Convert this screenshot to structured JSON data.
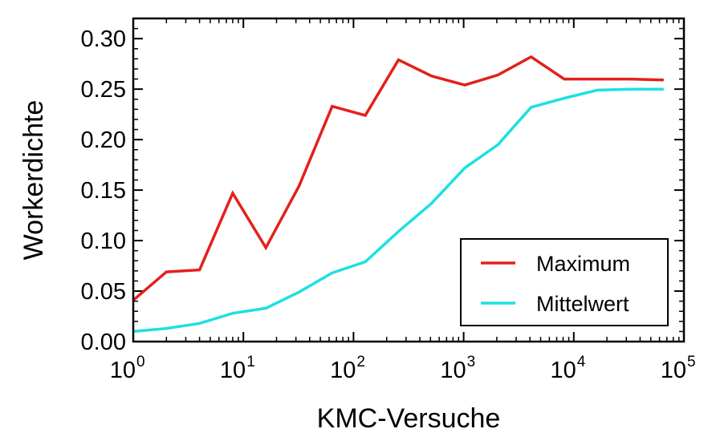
{
  "chart_data": {
    "type": "line",
    "title": "",
    "xlabel": "KMC-Versuche",
    "ylabel": "Workerdichte",
    "x_scale": "log",
    "xlim": [
      1,
      100000
    ],
    "ylim": [
      0,
      0.32
    ],
    "x_ticks": [
      {
        "value": 1,
        "base": "10",
        "exp": "0"
      },
      {
        "value": 10,
        "base": "10",
        "exp": "1"
      },
      {
        "value": 100,
        "base": "10",
        "exp": "2"
      },
      {
        "value": 1000,
        "base": "10",
        "exp": "3"
      },
      {
        "value": 10000,
        "base": "10",
        "exp": "4"
      },
      {
        "value": 100000,
        "base": "10",
        "exp": "5"
      }
    ],
    "y_ticks": [
      {
        "value": 0.0,
        "label": "0.00"
      },
      {
        "value": 0.05,
        "label": "0.05"
      },
      {
        "value": 0.1,
        "label": "0.10"
      },
      {
        "value": 0.15,
        "label": "0.15"
      },
      {
        "value": 0.2,
        "label": "0.20"
      },
      {
        "value": 0.25,
        "label": "0.25"
      },
      {
        "value": 0.3,
        "label": "0.30"
      }
    ],
    "x": [
      1,
      2,
      4,
      8,
      16,
      32,
      64,
      128,
      256,
      512,
      1024,
      2048,
      4096,
      8192,
      16384,
      32768,
      65536
    ],
    "series": [
      {
        "name": "Maximum",
        "color": "#e3201b",
        "values": [
          0.041,
          0.069,
          0.071,
          0.147,
          0.093,
          0.154,
          0.233,
          0.224,
          0.279,
          0.263,
          0.254,
          0.264,
          0.282,
          0.26,
          0.26,
          0.26,
          0.259
        ]
      },
      {
        "name": "Mittelwert",
        "color": "#1ee0e0",
        "values": [
          0.01,
          0.013,
          0.018,
          0.028,
          0.033,
          0.049,
          0.068,
          0.079,
          0.109,
          0.137,
          0.172,
          0.195,
          0.232,
          0.241,
          0.249,
          0.25,
          0.25
        ]
      }
    ],
    "grid": false,
    "legend_position": "bottom-right"
  }
}
